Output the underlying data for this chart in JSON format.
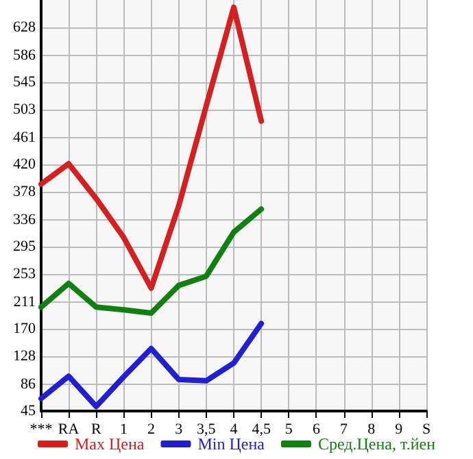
{
  "chart_data": {
    "type": "line",
    "categories": [
      "***",
      "RA",
      "R",
      "1",
      "2",
      "3",
      "3,5",
      "4",
      "4,5",
      "5",
      "6",
      "7",
      "8",
      "9",
      "S"
    ],
    "series": [
      {
        "name": "Max Цена",
        "color": "#d42020",
        "values": [
          390,
          421,
          368,
          309,
          232,
          357,
          509,
          659,
          486,
          null,
          null,
          null,
          null,
          null,
          null
        ]
      },
      {
        "name": "Min Цена",
        "color": "#2020d0",
        "values": [
          64,
          98,
          52,
          97,
          140,
          93,
          91,
          118,
          178,
          null,
          null,
          null,
          null,
          null,
          null
        ]
      },
      {
        "name": "Сред.Цена, т.йен",
        "color": "#108010",
        "values": [
          203,
          239,
          203,
          199,
          194,
          236,
          250,
          317,
          352,
          null,
          null,
          null,
          null,
          null,
          null
        ]
      }
    ],
    "ylim": [
      45,
      670
    ],
    "yticks": [
      45,
      86,
      128,
      170,
      211,
      253,
      295,
      336,
      378,
      420,
      461,
      503,
      545,
      586,
      628
    ],
    "grid": true,
    "legend": "bottom",
    "marker": "none",
    "line_style": "solid"
  }
}
